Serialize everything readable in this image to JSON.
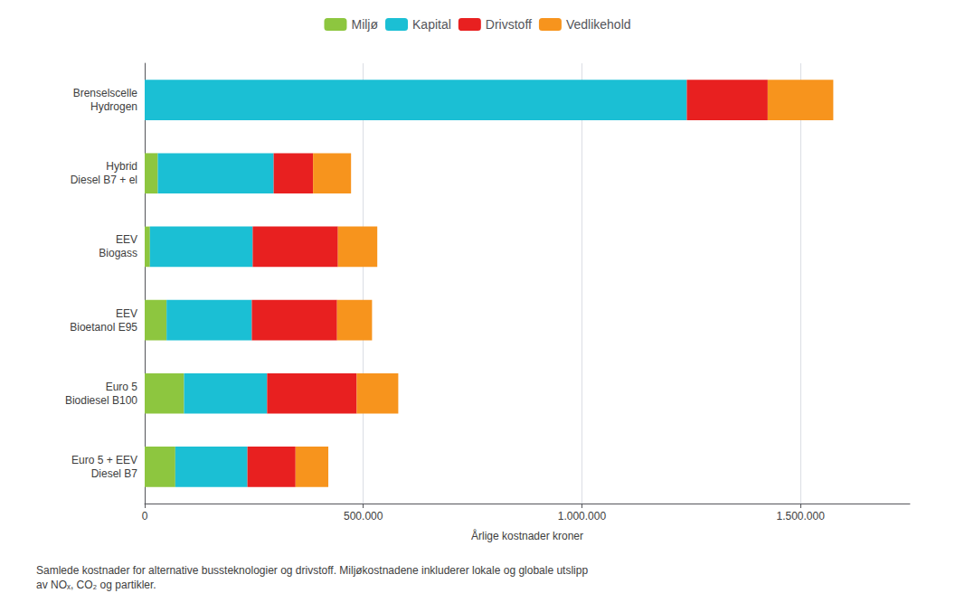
{
  "chart_data": {
    "type": "bar",
    "orientation": "horizontal",
    "stacked": true,
    "categories": [
      "Brenselscelle\nHydrogen",
      "Hybrid\nDiesel B7 + el",
      "EEV\nBiogass",
      "EEV\nBioetanol E95",
      "Euro 5\nBiodiesel B100",
      "Euro 5 + EEV\nDiesel B7"
    ],
    "series": [
      {
        "name": "Miljø",
        "color": "#8dc63f",
        "values": [
          0,
          30000,
          12000,
          50000,
          90000,
          70000
        ]
      },
      {
        "name": "Kapital",
        "color": "#1bbfd4",
        "values": [
          1240000,
          265000,
          235000,
          195000,
          190000,
          165000
        ]
      },
      {
        "name": "Drivstoff",
        "color": "#e82020",
        "values": [
          185000,
          90000,
          195000,
          195000,
          205000,
          110000
        ]
      },
      {
        "name": "Vedlikehold",
        "color": "#f7941d",
        "values": [
          150000,
          87000,
          90000,
          80000,
          95000,
          75000
        ]
      }
    ],
    "xlabel": "Årlige kostnader kroner",
    "xlim": [
      0,
      1750000
    ],
    "xticks": [
      0,
      {
        "value": 500000,
        "label": "500.000"
      },
      {
        "value": 1000000,
        "label": "1.000.000"
      },
      {
        "value": 1500000,
        "label": "1.500.000"
      }
    ],
    "grid": true,
    "legend": "top",
    "annotation": "Samlede kostnader for alternative bussteknologier og drivstoff. Miljøkostnadene inkluderer lokale og globale utslipp\nav NOₓ, CO₂ og partikler."
  }
}
